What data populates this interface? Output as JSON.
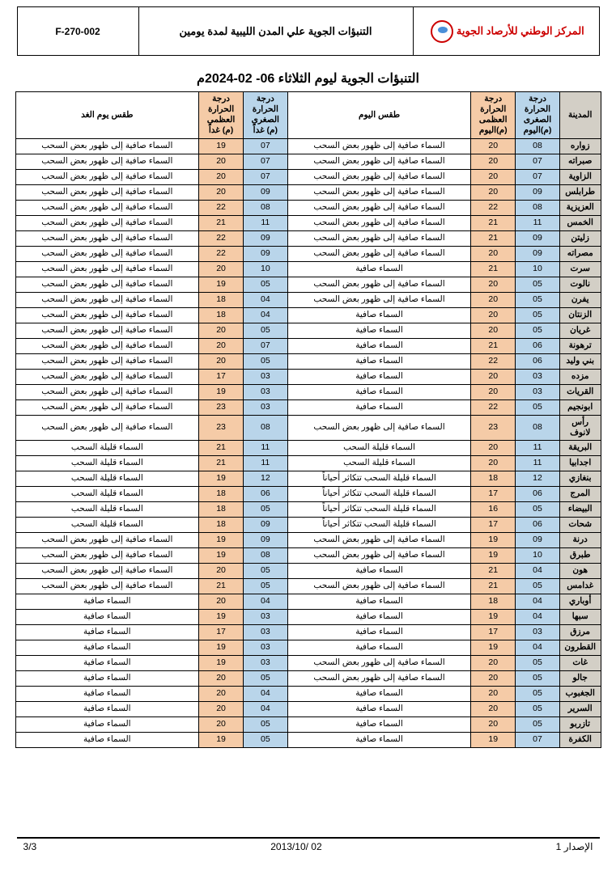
{
  "header": {
    "code": "F-270-002",
    "doc_title": "التنبؤات الجوية علي المدن الليبية لمدة يومين",
    "org": "المركز الوطني للأرصاد الجوية"
  },
  "page_title": "التنبؤات الجوية ليوم الثلاثاء  06- 02-2024م",
  "columns": {
    "city": "المدينة",
    "tmin_today": "درجة الحرارة الصغرى (م)اليوم",
    "tmax_today": "درجة الحرارة العظمى (م)اليوم",
    "today": "طقس اليوم",
    "tmin_tom": "درجة الحرارة الصغرى (م) غداً",
    "tmax_tom": "درجة الحرارة العظمى (م) غداً",
    "tomorrow": "طقس يوم الغد"
  },
  "rows": [
    {
      "city": "زواره",
      "tmin": "08",
      "tmax": "20",
      "today": "السماء صافية  إلى ظهور بعض  السحب",
      "tmin2": "07",
      "tmax2": "19",
      "tom": "السماء صافية  إلى ظهور بعض السحب"
    },
    {
      "city": "صبراته",
      "tmin": "07",
      "tmax": "20",
      "today": "السماء صافية  إلى ظهور بعض السحب",
      "tmin2": "07",
      "tmax2": "20",
      "tom": "السماء صافية  إلى ظهور بعض السحب"
    },
    {
      "city": "الزاوية",
      "tmin": "07",
      "tmax": "20",
      "today": "السماء صافية  إلى ظهور بعض السحب",
      "tmin2": "07",
      "tmax2": "20",
      "tom": "السماء صافية  إلى ظهور بعض السحب"
    },
    {
      "city": "طرابلس",
      "tmin": "09",
      "tmax": "20",
      "today": "السماء صافية  إلى ظهور بعض السحب",
      "tmin2": "09",
      "tmax2": "20",
      "tom": "السماء صافية  إلى ظهور بعض السحب"
    },
    {
      "city": "العزيزية",
      "tmin": "08",
      "tmax": "22",
      "today": "السماء صافية  إلى ظهور بعض السحب",
      "tmin2": "08",
      "tmax2": "22",
      "tom": "السماء صافية  إلى ظهور بعض السحب"
    },
    {
      "city": "الخمس",
      "tmin": "11",
      "tmax": "21",
      "today": "السماء صافية  إلى ظهور بعض السحب",
      "tmin2": "11",
      "tmax2": "21",
      "tom": "السماء صافية  إلى ظهور بعض السحب"
    },
    {
      "city": "زليتن",
      "tmin": "09",
      "tmax": "21",
      "today": "السماء صافية  إلى ظهور بعض السحب",
      "tmin2": "09",
      "tmax2": "22",
      "tom": "السماء صافية  إلى ظهور بعض السحب"
    },
    {
      "city": "مصراته",
      "tmin": "09",
      "tmax": "20",
      "today": "السماء صافية  إلى ظهور بعض  السحب",
      "tmin2": "09",
      "tmax2": "22",
      "tom": "السماء صافية  إلى ظهور بعض السحب"
    },
    {
      "city": "سرت",
      "tmin": "10",
      "tmax": "21",
      "today": "السماء صافية",
      "tmin2": "10",
      "tmax2": "20",
      "tom": "السماء صافية إلى ظهور بعض السحب"
    },
    {
      "city": "نالوت",
      "tmin": "05",
      "tmax": "20",
      "today": "السماء صافية  إلى ظهور بعض السحب",
      "tmin2": "05",
      "tmax2": "19",
      "tom": "السماء صافية  إلى ظهور بعض السحب"
    },
    {
      "city": "يفرن",
      "tmin": "05",
      "tmax": "20",
      "today": "السماء صافية  إلى ظهور بعض السحب",
      "tmin2": "04",
      "tmax2": "18",
      "tom": "السماء صافية  إلى ظهور بعض السحب"
    },
    {
      "city": "الزنتان",
      "tmin": "05",
      "tmax": "20",
      "today": "السماء صافية",
      "tmin2": "04",
      "tmax2": "18",
      "tom": "السماء صافية إلى ظهور بعض  السحب"
    },
    {
      "city": "غريان",
      "tmin": "05",
      "tmax": "20",
      "today": "السماء صافية",
      "tmin2": "05",
      "tmax2": "20",
      "tom": "السماء صافية إلى ظهور بعض  السحب"
    },
    {
      "city": "ترهونة",
      "tmin": "06",
      "tmax": "21",
      "today": "السماء صافية",
      "tmin2": "07",
      "tmax2": "20",
      "tom": "السماء صافية  إلى ظهور بعض السحب"
    },
    {
      "city": "بني وليد",
      "tmin": "06",
      "tmax": "22",
      "today": "السماء صافية",
      "tmin2": "05",
      "tmax2": "20",
      "tom": "السماء صافية  إلى ظهور بعض السحب"
    },
    {
      "city": "مزده",
      "tmin": "03",
      "tmax": "20",
      "today": "السماء صافية",
      "tmin2": "03",
      "tmax2": "17",
      "tom": "السماء صافية إلى ظهور بعض  السحب"
    },
    {
      "city": "القريات",
      "tmin": "03",
      "tmax": "20",
      "today": "السماء صافية",
      "tmin2": "03",
      "tmax2": "19",
      "tom": "السماء صافية  إلى ظهور بعض السحب"
    },
    {
      "city": "ابونجيم",
      "tmin": "05",
      "tmax": "22",
      "today": "السماء صافية",
      "tmin2": "03",
      "tmax2": "23",
      "tom": "السماء صافية  إلى ظهور بعض السحب"
    },
    {
      "city": "رأس لانوف",
      "tmin": "08",
      "tmax": "23",
      "today": "السماء صافية إلى ظهور بعض  السحب",
      "tmin2": "08",
      "tmax2": "23",
      "tom": "السماء صافية  إلى ظهور بعض السحب"
    },
    {
      "city": "البريقة",
      "tmin": "11",
      "tmax": "20",
      "today": "السماء قليلة السحب",
      "tmin2": "11",
      "tmax2": "21",
      "tom": "السماء قليلة السحب"
    },
    {
      "city": "اجدابيا",
      "tmin": "11",
      "tmax": "20",
      "today": "السماء قليلة السحب",
      "tmin2": "11",
      "tmax2": "21",
      "tom": "السماء قليلة السحب"
    },
    {
      "city": "بنغازي",
      "tmin": "12",
      "tmax": "18",
      "today": "السماء قليلة السحب تتكاثر أحياناً",
      "tmin2": "12",
      "tmax2": "19",
      "tom": "السماء قليلة السحب"
    },
    {
      "city": "المرج",
      "tmin": "06",
      "tmax": "17",
      "today": "السماء قليلة السحب تتكاثر أحياناً",
      "tmin2": "06",
      "tmax2": "18",
      "tom": "السماء قليلة السحب"
    },
    {
      "city": "البيضاء",
      "tmin": "05",
      "tmax": "16",
      "today": "السماء قليلة السحب تتكاثر أحياناً",
      "tmin2": "05",
      "tmax2": "18",
      "tom": "السماء قليلة السحب"
    },
    {
      "city": "شحات",
      "tmin": "06",
      "tmax": "17",
      "today": "السماء قليلة السحب تتكاثر أحياناً",
      "tmin2": "09",
      "tmax2": "18",
      "tom": "السماء قليلة السحب"
    },
    {
      "city": "درنة",
      "tmin": "09",
      "tmax": "19",
      "today": "السماء صافية إلى ظهور بعض السحب",
      "tmin2": "09",
      "tmax2": "19",
      "tom": "السماء صافية  إلى ظهور بعض السحب"
    },
    {
      "city": "طبرق",
      "tmin": "10",
      "tmax": "19",
      "today": "السماء صافية إلى ظهور بعض  السحب",
      "tmin2": "08",
      "tmax2": "19",
      "tom": "السماء صافية  إلى ظهور بعض السحب"
    },
    {
      "city": "هون",
      "tmin": "04",
      "tmax": "21",
      "today": "السماء صافية",
      "tmin2": "05",
      "tmax2": "20",
      "tom": "السماء صافية إلى ظهور بعض السحب"
    },
    {
      "city": "غدامس",
      "tmin": "05",
      "tmax": "21",
      "today": "السماء صافية إلى ظهور بعض السحب",
      "tmin2": "05",
      "tmax2": "21",
      "tom": "السماء صافية إلى ظهور بعض  السحب"
    },
    {
      "city": "أوباري",
      "tmin": "04",
      "tmax": "18",
      "today": "السماء صافية",
      "tmin2": "04",
      "tmax2": "20",
      "tom": "السماء صافية"
    },
    {
      "city": "سبها",
      "tmin": "04",
      "tmax": "19",
      "today": "السماء صافية",
      "tmin2": "03",
      "tmax2": "19",
      "tom": "السماء صافية"
    },
    {
      "city": "مرزق",
      "tmin": "03",
      "tmax": "17",
      "today": "السماء صافية",
      "tmin2": "03",
      "tmax2": "17",
      "tom": "السماء صافية"
    },
    {
      "city": "القطرون",
      "tmin": "04",
      "tmax": "19",
      "today": "السماء صافية",
      "tmin2": "03",
      "tmax2": "19",
      "tom": "السماء صافية"
    },
    {
      "city": "غات",
      "tmin": "05",
      "tmax": "20",
      "today": "السماء صافية إلى ظهور بعض السحب",
      "tmin2": "03",
      "tmax2": "19",
      "tom": "السماء صافية"
    },
    {
      "city": "جالو",
      "tmin": "05",
      "tmax": "20",
      "today": "السماء صافية  إلى ظهور بعض  السحب",
      "tmin2": "05",
      "tmax2": "20",
      "tom": "السماء صافية"
    },
    {
      "city": "الجغبوب",
      "tmin": "05",
      "tmax": "20",
      "today": "السماء صافية",
      "tmin2": "04",
      "tmax2": "20",
      "tom": "السماء صافية"
    },
    {
      "city": "السرير",
      "tmin": "05",
      "tmax": "20",
      "today": "السماء صافية",
      "tmin2": "04",
      "tmax2": "20",
      "tom": "السماء صافية"
    },
    {
      "city": "تازربو",
      "tmin": "05",
      "tmax": "20",
      "today": "السماء صافية",
      "tmin2": "05",
      "tmax2": "20",
      "tom": "السماء صافية"
    },
    {
      "city": "الكفرة",
      "tmin": "07",
      "tmax": "19",
      "today": "السماء صافية",
      "tmin2": "05",
      "tmax2": "19",
      "tom": "السماء صافية"
    }
  ],
  "footer": {
    "issue": "الإصدار 1",
    "date": "2013/10/ 02",
    "page": "3/3"
  },
  "colors": {
    "city_bg": "#d3cfc6",
    "min_bg": "#b9d5ea",
    "max_bg": "#f5cba7",
    "org_color": "#c00"
  }
}
